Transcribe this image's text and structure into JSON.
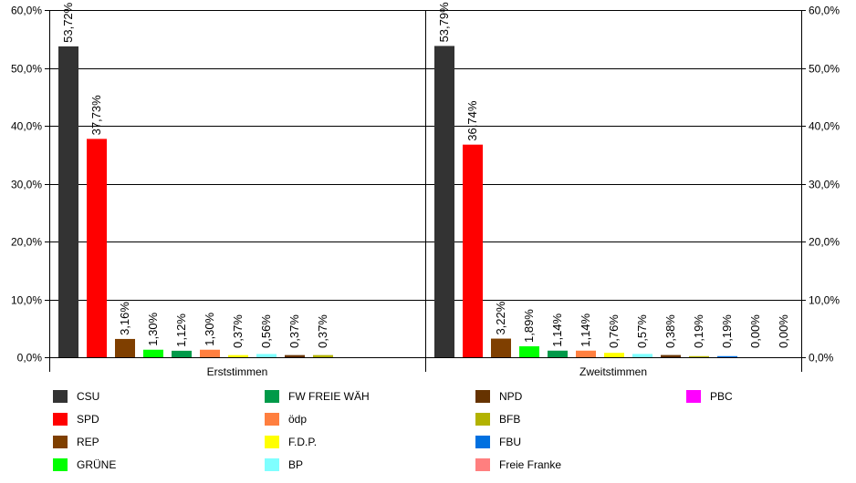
{
  "chart_data": {
    "type": "bar",
    "y_ticks": [
      "0,0%",
      "10,0%",
      "20,0%",
      "30,0%",
      "40,0%",
      "50,0%",
      "60,0%"
    ],
    "ylim": [
      0,
      60
    ],
    "grid": true,
    "legend_position": "bottom",
    "panels": [
      {
        "title": "Erststimmen",
        "bars": [
          {
            "party": "CSU",
            "value": 53.72,
            "label": "53,72%"
          },
          {
            "party": "SPD",
            "value": 37.73,
            "label": "37,73%"
          },
          {
            "party": "REP",
            "value": 3.16,
            "label": "3,16%"
          },
          {
            "party": "GRÜNE",
            "value": 1.3,
            "label": "1,30%"
          },
          {
            "party": "FW FREIE WÄH",
            "value": 1.12,
            "label": "1,12%"
          },
          {
            "party": "ödp",
            "value": 1.3,
            "label": "1,30%"
          },
          {
            "party": "F.D.P.",
            "value": 0.37,
            "label": "0,37%"
          },
          {
            "party": "BP",
            "value": 0.56,
            "label": "0,56%"
          },
          {
            "party": "NPD",
            "value": 0.37,
            "label": "0,37%"
          },
          {
            "party": "BFB",
            "value": 0.37,
            "label": "0,37%"
          }
        ]
      },
      {
        "title": "Zweitstimmen",
        "bars": [
          {
            "party": "CSU",
            "value": 53.79,
            "label": "53,79%"
          },
          {
            "party": "SPD",
            "value": 36.74,
            "label": "36,74%"
          },
          {
            "party": "REP",
            "value": 3.22,
            "label": "3,22%"
          },
          {
            "party": "GRÜNE",
            "value": 1.89,
            "label": "1,89%"
          },
          {
            "party": "FW FREIE WÄH",
            "value": 1.14,
            "label": "1,14%"
          },
          {
            "party": "ödp",
            "value": 1.14,
            "label": "1,14%"
          },
          {
            "party": "F.D.P.",
            "value": 0.76,
            "label": "0,76%"
          },
          {
            "party": "BP",
            "value": 0.57,
            "label": "0,57%"
          },
          {
            "party": "NPD",
            "value": 0.38,
            "label": "0,38%"
          },
          {
            "party": "BFB",
            "value": 0.19,
            "label": "0,19%"
          },
          {
            "party": "FBU",
            "value": 0.19,
            "label": "0,19%"
          },
          {
            "party": "Freie Franke",
            "value": 0.0,
            "label": "0,00%"
          },
          {
            "party": "PBC",
            "value": 0.0,
            "label": "0,00%"
          }
        ]
      }
    ],
    "legend": [
      {
        "name": "CSU",
        "color": "#333333"
      },
      {
        "name": "SPD",
        "color": "#ff0000"
      },
      {
        "name": "REP",
        "color": "#7f3f00"
      },
      {
        "name": "GRÜNE",
        "color": "#00ff00"
      },
      {
        "name": "FW FREIE WÄH",
        "color": "#009a49"
      },
      {
        "name": "ödp",
        "color": "#ff7f3f"
      },
      {
        "name": "F.D.P.",
        "color": "#ffff00"
      },
      {
        "name": "BP",
        "color": "#7fffff"
      },
      {
        "name": "NPD",
        "color": "#663300"
      },
      {
        "name": "BFB",
        "color": "#b2b200"
      },
      {
        "name": "FBU",
        "color": "#0070e0"
      },
      {
        "name": "Freie Franke",
        "color": "#ff7f7f"
      },
      {
        "name": "PBC",
        "color": "#ff00ff"
      }
    ]
  }
}
